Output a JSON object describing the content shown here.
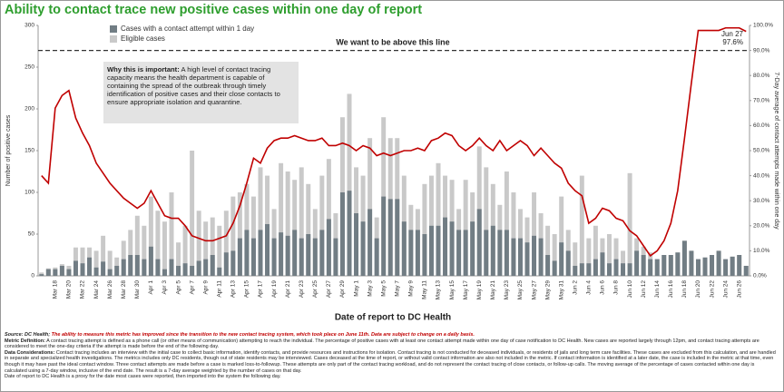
{
  "chart_data": {
    "type": "bar",
    "title": "Ability to contact trace new positive cases within one day of report",
    "x_label": "Date of report to DC Health",
    "y_label": "Number of positive cases",
    "y2_label": "7-Day average of contact attempts made within one day",
    "categories": [
      null,
      null,
      "Mar 18",
      null,
      "Mar 20",
      null,
      "Mar 22",
      null,
      "Mar 24",
      null,
      "Mar 26",
      null,
      "Mar 28",
      null,
      "Mar 30",
      null,
      "Apr 1",
      null,
      "Apr 3",
      null,
      "Apr 5",
      null,
      "Apr 7",
      null,
      "Apr 9",
      null,
      "Apr 11",
      null,
      "Apr 13",
      null,
      "Apr 15",
      null,
      "Apr 17",
      null,
      "Apr 19",
      null,
      "Apr 21",
      null,
      "Apr 23",
      null,
      "Apr 25",
      null,
      "Apr 27",
      null,
      "Apr 29",
      null,
      "May 1",
      null,
      "May 3",
      null,
      "May 5",
      null,
      "May 7",
      null,
      "May 9",
      null,
      "May 11",
      null,
      "May 13",
      null,
      "May 15",
      null,
      "May 17",
      null,
      "May 19",
      null,
      "May 21",
      null,
      "May 23",
      null,
      "May 25",
      null,
      "May 27",
      null,
      "May 29",
      null,
      "May 31",
      null,
      "Jun 2",
      null,
      "Jun 4",
      null,
      "Jun 6",
      null,
      "Jun 8",
      null,
      "Jun 10",
      null,
      "Jun 12",
      null,
      "Jun 14",
      null,
      "Jun 16",
      null,
      "Jun 18",
      null,
      "Jun 20",
      null,
      "Jun 22",
      null,
      "Jun 24",
      null,
      "Jun 26",
      null
    ],
    "series": [
      {
        "name": "Eligible cases",
        "color": "#c9c9c9",
        "values": [
          4,
          9,
          10,
          14,
          12,
          34,
          34,
          34,
          30,
          48,
          30,
          22,
          42,
          55,
          72,
          60,
          95,
          78,
          65,
          100,
          40,
          60,
          150,
          78,
          65,
          70,
          60,
          78,
          95,
          100,
          110,
          95,
          130,
          120,
          80,
          135,
          125,
          115,
          130,
          110,
          80,
          120,
          140,
          75,
          190,
          218,
          130,
          120,
          165,
          70,
          190,
          165,
          165,
          120,
          85,
          80,
          110,
          120,
          135,
          120,
          115,
          80,
          115,
          100,
          155,
          130,
          110,
          85,
          125,
          100,
          80,
          70,
          100,
          75,
          60,
          50,
          95,
          55,
          40,
          120,
          45,
          60,
          45,
          50,
          45,
          30,
          123,
          45,
          35,
          28,
          20,
          25,
          25,
          28,
          42,
          30,
          20,
          22,
          25,
          30,
          20,
          23,
          25,
          12
        ]
      },
      {
        "name": "Cases with a contact attempt within 1 day",
        "color": "#717d84",
        "values": [
          2,
          8,
          8,
          12,
          8,
          18,
          15,
          22,
          10,
          17,
          8,
          12,
          20,
          25,
          25,
          20,
          35,
          20,
          8,
          20,
          12,
          15,
          12,
          18,
          20,
          25,
          10,
          28,
          30,
          45,
          55,
          45,
          55,
          62,
          45,
          52,
          48,
          55,
          45,
          50,
          45,
          55,
          68,
          45,
          100,
          102,
          75,
          65,
          80,
          45,
          95,
          92,
          92,
          65,
          55,
          55,
          50,
          60,
          60,
          70,
          65,
          55,
          55,
          65,
          80,
          55,
          60,
          55,
          55,
          45,
          45,
          40,
          48,
          45,
          25,
          18,
          40,
          30,
          12,
          15,
          15,
          20,
          28,
          15,
          20,
          15,
          15,
          30,
          25,
          20,
          20,
          25,
          25,
          28,
          42,
          30,
          20,
          22,
          25,
          30,
          20,
          23,
          25,
          12
        ]
      },
      {
        "type": "line",
        "axis": "y2",
        "color": "#c00000",
        "values": [
          40,
          37,
          67,
          72,
          74,
          63,
          57,
          52,
          45,
          41,
          37,
          34,
          31,
          29,
          27,
          29,
          34,
          29,
          24,
          23,
          23,
          20,
          16,
          15,
          14,
          14,
          15,
          16,
          21,
          28,
          37,
          47,
          45,
          51,
          54,
          55,
          55,
          56,
          55,
          54,
          54,
          55,
          52,
          52,
          53,
          52,
          50,
          52,
          51,
          48,
          49,
          48,
          49,
          50,
          50,
          51,
          50,
          54,
          55,
          57,
          56,
          52,
          50,
          52,
          55,
          52,
          50,
          54,
          50,
          52,
          54,
          52,
          48,
          51,
          48,
          45,
          43,
          37,
          34,
          32,
          21,
          23,
          27,
          26,
          23,
          22,
          18,
          16,
          12,
          8,
          10,
          14,
          21,
          34,
          55,
          77,
          98,
          98,
          98,
          98,
          99,
          99,
          99,
          97.6
        ]
      }
    ],
    "legend_order": [
      1,
      0
    ],
    "ylim": [
      0,
      300
    ],
    "yticks": [
      0,
      50,
      100,
      150,
      200,
      250,
      300
    ],
    "y2lim": [
      0,
      100
    ],
    "y2ticks": [
      {
        "value": 0,
        "label": "0.0%"
      },
      {
        "value": 10,
        "label": "10.0%"
      },
      {
        "value": 20,
        "label": "20.0%"
      },
      {
        "value": 30,
        "label": "30.0%"
      },
      {
        "value": 40,
        "label": "40.0%"
      },
      {
        "value": 50,
        "label": "50.0%"
      },
      {
        "value": 60,
        "label": "60.0%"
      },
      {
        "value": 70,
        "label": "70.0%"
      },
      {
        "value": 80,
        "label": "80.0%"
      },
      {
        "value": 90,
        "label": "90.0%"
      },
      {
        "value": 100,
        "label": "100.0%"
      }
    ],
    "grid": false,
    "threshold": {
      "value": 90,
      "label": "We want to be above this line"
    },
    "end_label": {
      "date": "Jun 27",
      "value": "97.6%"
    },
    "info_box": {
      "heading": "Why this is important:",
      "text": "A high level of contact tracing capacity means the health department is capable of containing the spread of the outbreak through timely identification of positive cases and their close contacts to ensure appropriate isolation and quarantine."
    },
    "footnotes": [
      {
        "label": "Source: DC Health;",
        "text": "The ability to measure this metric has improved since the transition to the new contact tracing system, which took place on June 11th. Data are subject to change on a daily basis."
      },
      {
        "label": "Metric Definition:",
        "text": "A contact tracing attempt is defined as a phone call (or other means of communication) attempting to reach the individual. The percentage of positive cases with at least one contact attempt made within one day of case notification to DC Health.  New cases are reported largely through 12pm, and contact tracing attempts are considered to meet the one-day criteria if the attempt is made before the end of the following day."
      },
      {
        "label": "Data Considerations:",
        "text": "Contact tracing includes an interview with the initial case to collect basic information, identify contacts, and provide resources and instructions for isolation. Contact tracing is not conducted for deceased individuals, or residents of jails and long term care facilities. These cases are excluded from this calculation, and are handled in separate and specialized health investigations. The metrics includes only DC residents, though out of state residents may be interviewed. Cases deceased at the time of report, or without valid contact information are also not included in the metric. If contact information is identified at a later date, the case is included in the metric at that time, even though it may have past the ideal contact window. Three contact attempts are made before a case is marked loss-to-followup. These attempts are only part of the contact tracing workload, and do not represent the contact tracing of close contacts, or follow-up calls. The moving average of the percentage of cases contacted within one day is calculated using a 7-day window, inclusive of the end date. The result is a 7-day average weighted by the number of cases on that day."
      },
      {
        "text": "Date of report to DC Health is a proxy for the date most cases were reported, then imported into the system the following day."
      }
    ]
  }
}
